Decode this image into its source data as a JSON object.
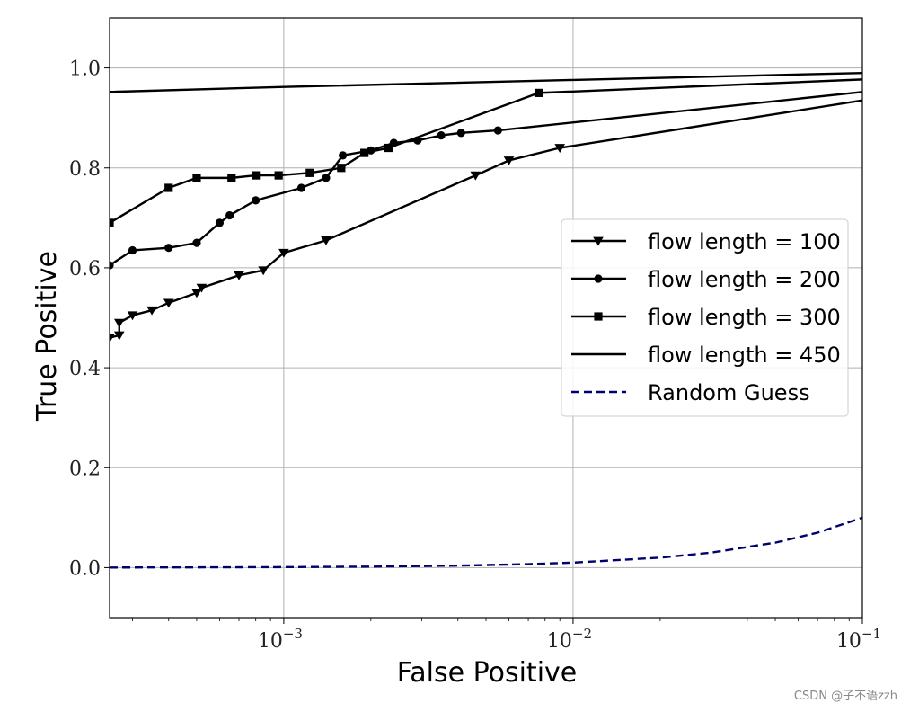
{
  "chart_data": {
    "type": "line",
    "title": "",
    "xlabel": "False Positive",
    "ylabel": "True Positive",
    "xscale": "log",
    "xlim": [
      0.00025,
      0.1
    ],
    "ylim": [
      -0.1,
      1.1
    ],
    "grid": true,
    "legend_position": "center-right",
    "xticks": [
      {
        "value": 0.001,
        "base": "10",
        "exp": "−3"
      },
      {
        "value": 0.01,
        "base": "10",
        "exp": "−2"
      },
      {
        "value": 0.1,
        "base": "10",
        "exp": "−1"
      }
    ],
    "yticks": [
      {
        "value": 0.0,
        "label": "0.0"
      },
      {
        "value": 0.2,
        "label": "0.2"
      },
      {
        "value": 0.4,
        "label": "0.4"
      },
      {
        "value": 0.6,
        "label": "0.6"
      },
      {
        "value": 0.8,
        "label": "0.8"
      },
      {
        "value": 1.0,
        "label": "1.0"
      }
    ],
    "series": [
      {
        "name": "flow length = 100",
        "marker": "triangle-down",
        "color": "#000000",
        "dash": "solid",
        "x": [
          0.00025,
          0.00027,
          0.00027,
          0.0003,
          0.00035,
          0.0004,
          0.0005,
          0.00052,
          0.0007,
          0.00085,
          0.001,
          0.0014,
          0.0046,
          0.006,
          0.009,
          0.1
        ],
        "y": [
          0.46,
          0.465,
          0.49,
          0.505,
          0.515,
          0.53,
          0.55,
          0.56,
          0.585,
          0.595,
          0.63,
          0.655,
          0.785,
          0.815,
          0.84,
          0.935
        ]
      },
      {
        "name": "flow length = 200",
        "marker": "circle",
        "color": "#000000",
        "dash": "solid",
        "x": [
          0.00025,
          0.0003,
          0.0004,
          0.0005,
          0.0006,
          0.00065,
          0.0008,
          0.00115,
          0.0014,
          0.0016,
          0.002,
          0.0024,
          0.0029,
          0.0035,
          0.0041,
          0.0055,
          0.1
        ],
        "y": [
          0.605,
          0.635,
          0.64,
          0.65,
          0.69,
          0.705,
          0.735,
          0.76,
          0.78,
          0.825,
          0.835,
          0.85,
          0.855,
          0.865,
          0.87,
          0.875,
          0.952
        ]
      },
      {
        "name": "flow length = 300",
        "marker": "square",
        "color": "#000000",
        "dash": "solid",
        "x": [
          0.00025,
          0.0004,
          0.0005,
          0.00066,
          0.0008,
          0.00096,
          0.00123,
          0.00158,
          0.0019,
          0.0023,
          0.0076,
          0.1
        ],
        "y": [
          0.69,
          0.76,
          0.78,
          0.78,
          0.785,
          0.785,
          0.79,
          0.8,
          0.83,
          0.84,
          0.95,
          0.977
        ]
      },
      {
        "name": "flow length = 450",
        "marker": "none",
        "color": "#000000",
        "dash": "solid",
        "x": [
          0.00025,
          0.001,
          0.01,
          0.1
        ],
        "y": [
          0.952,
          0.962,
          0.976,
          0.99
        ]
      },
      {
        "name": "Random Guess",
        "marker": "none",
        "color": "#00006e",
        "dash": "dashed",
        "x": [
          0.00025,
          0.0005,
          0.001,
          0.002,
          0.004,
          0.007,
          0.01,
          0.02,
          0.03,
          0.05,
          0.07,
          0.1
        ],
        "y": [
          0.00025,
          0.0005,
          0.001,
          0.002,
          0.004,
          0.007,
          0.01,
          0.02,
          0.03,
          0.05,
          0.07,
          0.1
        ]
      }
    ]
  },
  "watermark": "CSDN @子不语zzh"
}
